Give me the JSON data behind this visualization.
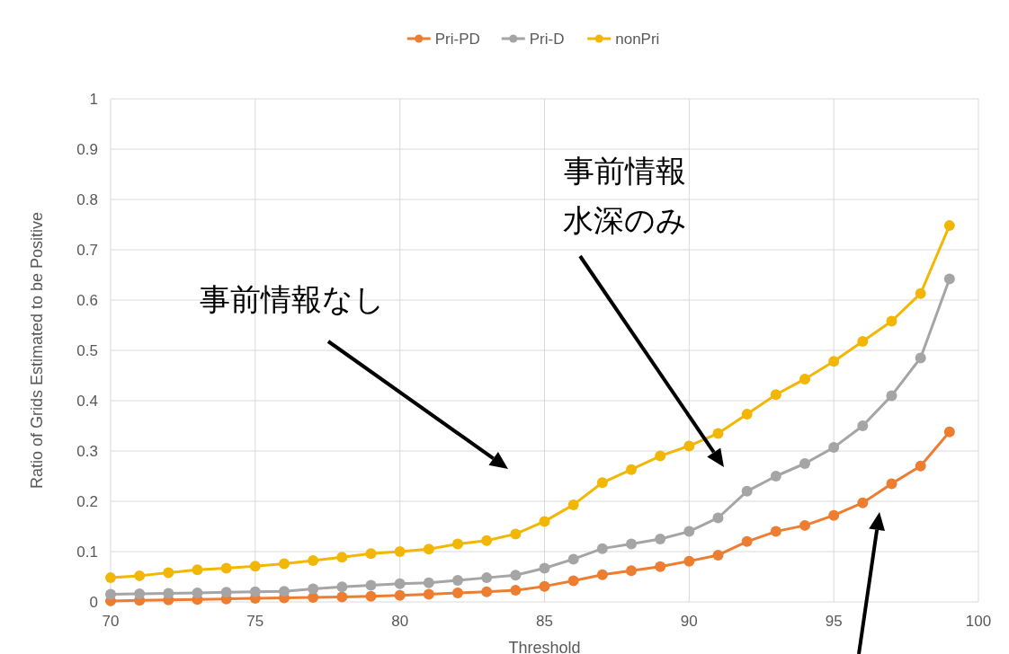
{
  "chart_data": {
    "type": "line",
    "xlabel": "Threshold",
    "ylabel": "Ratio of Grids Estimated to be Positive",
    "x": [
      70,
      71,
      72,
      73,
      74,
      75,
      76,
      77,
      78,
      79,
      80,
      81,
      82,
      83,
      84,
      85,
      86,
      87,
      88,
      89,
      90,
      91,
      92,
      93,
      94,
      95,
      96,
      97,
      98,
      99
    ],
    "series": [
      {
        "name": "Pri-PD",
        "color": "#ed7d31",
        "values": [
          0.002,
          0.003,
          0.004,
          0.005,
          0.006,
          0.007,
          0.008,
          0.009,
          0.01,
          0.011,
          0.013,
          0.015,
          0.018,
          0.02,
          0.023,
          0.031,
          0.042,
          0.054,
          0.062,
          0.07,
          0.081,
          0.093,
          0.12,
          0.14,
          0.152,
          0.172,
          0.197,
          0.235,
          0.27,
          0.338
        ]
      },
      {
        "name": "Pri-D",
        "color": "#a5a5a5",
        "values": [
          0.015,
          0.016,
          0.017,
          0.018,
          0.019,
          0.02,
          0.021,
          0.026,
          0.03,
          0.033,
          0.036,
          0.038,
          0.043,
          0.048,
          0.053,
          0.067,
          0.085,
          0.106,
          0.115,
          0.125,
          0.14,
          0.167,
          0.22,
          0.25,
          0.275,
          0.307,
          0.35,
          0.41,
          0.485,
          0.642
        ]
      },
      {
        "name": "nonPri",
        "color": "#f2b705",
        "values": [
          0.048,
          0.052,
          0.058,
          0.064,
          0.067,
          0.071,
          0.076,
          0.082,
          0.089,
          0.096,
          0.1,
          0.105,
          0.115,
          0.122,
          0.135,
          0.16,
          0.193,
          0.237,
          0.263,
          0.29,
          0.31,
          0.335,
          0.373,
          0.412,
          0.443,
          0.478,
          0.518,
          0.558,
          0.613,
          0.748
        ]
      }
    ],
    "xlim": [
      70,
      100
    ],
    "xticks": [
      70,
      75,
      80,
      85,
      90,
      95,
      100
    ],
    "ylim": [
      0,
      1
    ],
    "yticks": [
      0,
      0.1,
      0.2,
      0.3,
      0.4,
      0.5,
      0.6,
      0.7,
      0.8,
      0.9,
      1
    ],
    "grid": true,
    "legend": "top",
    "marker": "circle",
    "line_style": "solid",
    "annotations": [
      "事前情報なし",
      "事前情報",
      "水深のみ"
    ]
  }
}
